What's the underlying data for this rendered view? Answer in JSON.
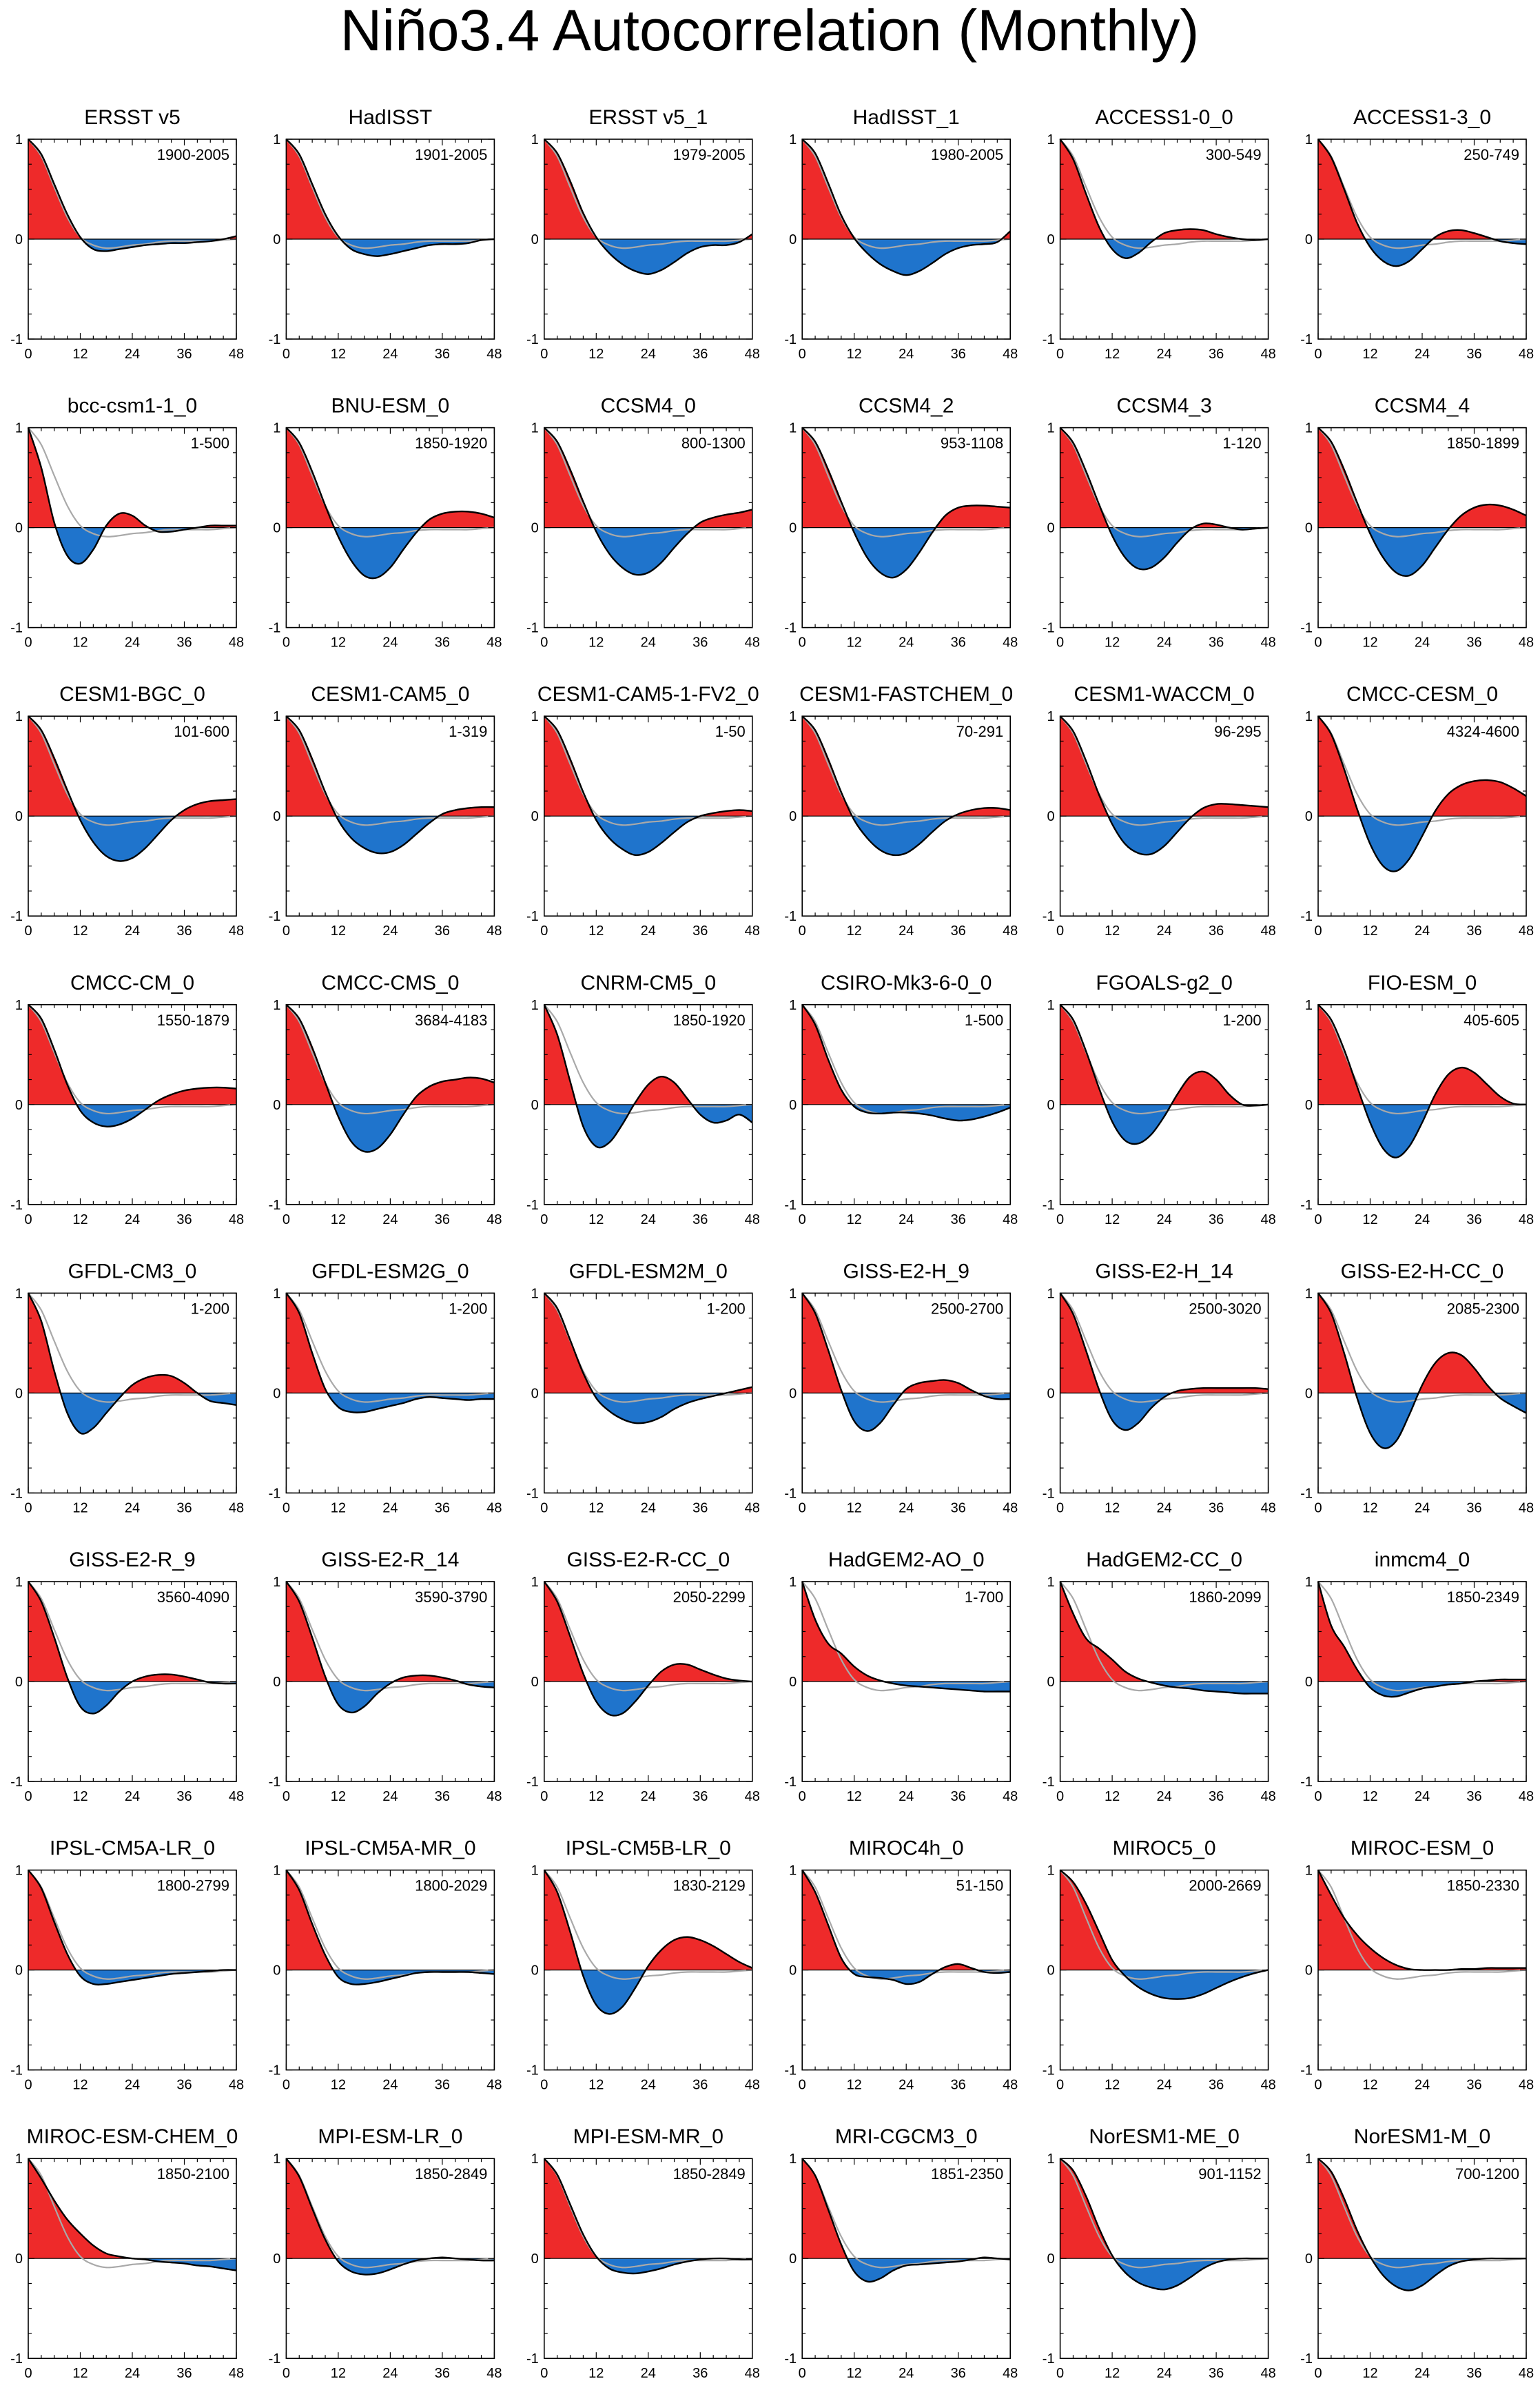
{
  "figure": {
    "title": "Niño3.4 Autocorrelation (Monthly)"
  },
  "colors": {
    "positive_fill": "#ee2a2a",
    "negative_fill": "#1f74cc",
    "model_line": "#000000",
    "obs_line": "#a9a9a9"
  },
  "chart_data": {
    "type": "area",
    "x_unit": "lag (months)",
    "xlim": [
      0,
      48
    ],
    "ylim": [
      -1,
      1
    ],
    "x_ticks": [
      0,
      12,
      24,
      36,
      48
    ],
    "y_ticks": [
      -1,
      0,
      1
    ],
    "x_tick_labels": [
      "0",
      "12",
      "24",
      "36",
      "48"
    ],
    "y_tick_labels": [
      "-1",
      "0",
      "1"
    ],
    "lag_months": [
      0,
      3,
      6,
      9,
      12,
      15,
      18,
      21,
      24,
      27,
      30,
      33,
      36,
      39,
      42,
      45,
      48
    ],
    "reference_series": [
      1.0,
      0.83,
      0.52,
      0.22,
      0.02,
      -0.06,
      -0.09,
      -0.08,
      -0.06,
      -0.05,
      -0.03,
      -0.02,
      -0.02,
      -0.02,
      -0.02,
      -0.01,
      0.0
    ],
    "panels": [
      {
        "name": "ERSST v5",
        "period": "1900-2005",
        "values": [
          1.0,
          0.85,
          0.55,
          0.25,
          0.02,
          -0.1,
          -0.12,
          -0.1,
          -0.08,
          -0.06,
          -0.05,
          -0.04,
          -0.04,
          -0.03,
          -0.02,
          0.0,
          0.03
        ]
      },
      {
        "name": "HadISST",
        "period": "1901-2005",
        "values": [
          1.0,
          0.85,
          0.55,
          0.25,
          0.03,
          -0.1,
          -0.15,
          -0.17,
          -0.15,
          -0.12,
          -0.09,
          -0.06,
          -0.05,
          -0.05,
          -0.04,
          -0.01,
          0.0
        ]
      },
      {
        "name": "ERSST v5_1",
        "period": "1979-2005",
        "values": [
          1.0,
          0.86,
          0.58,
          0.26,
          0.02,
          -0.14,
          -0.25,
          -0.32,
          -0.35,
          -0.31,
          -0.23,
          -0.14,
          -0.08,
          -0.06,
          -0.06,
          -0.03,
          0.05
        ]
      },
      {
        "name": "HadISST_1",
        "period": "1980-2005",
        "values": [
          1.0,
          0.86,
          0.56,
          0.24,
          0.01,
          -0.14,
          -0.25,
          -0.32,
          -0.36,
          -0.32,
          -0.24,
          -0.15,
          -0.09,
          -0.06,
          -0.05,
          -0.03,
          0.08
        ]
      },
      {
        "name": "ACCESS1-0_0",
        "period": "300-549",
        "values": [
          1.0,
          0.8,
          0.45,
          0.12,
          -0.1,
          -0.19,
          -0.14,
          -0.03,
          0.06,
          0.09,
          0.1,
          0.09,
          0.05,
          0.02,
          0.0,
          -0.01,
          0.0
        ]
      },
      {
        "name": "ACCESS1-3_0",
        "period": "250-749",
        "values": [
          1.0,
          0.82,
          0.5,
          0.16,
          -0.08,
          -0.22,
          -0.27,
          -0.22,
          -0.1,
          0.02,
          0.08,
          0.09,
          0.06,
          0.02,
          -0.02,
          -0.04,
          -0.05
        ]
      },
      {
        "name": "bcc-csm1-1_0",
        "period": "1-500",
        "values": [
          1.0,
          0.6,
          0.05,
          -0.28,
          -0.36,
          -0.22,
          0.02,
          0.14,
          0.12,
          0.02,
          -0.04,
          -0.04,
          -0.02,
          0.0,
          0.02,
          0.02,
          0.02
        ]
      },
      {
        "name": "BNU-ESM_0",
        "period": "1850-1920",
        "values": [
          1.0,
          0.85,
          0.56,
          0.22,
          -0.09,
          -0.33,
          -0.48,
          -0.5,
          -0.4,
          -0.22,
          -0.05,
          0.08,
          0.14,
          0.16,
          0.16,
          0.14,
          0.1
        ]
      },
      {
        "name": "CCSM4_0",
        "period": "800-1300",
        "values": [
          1.0,
          0.86,
          0.58,
          0.26,
          -0.04,
          -0.26,
          -0.4,
          -0.47,
          -0.45,
          -0.35,
          -0.2,
          -0.06,
          0.05,
          0.1,
          0.13,
          0.15,
          0.18
        ]
      },
      {
        "name": "CCSM4_2",
        "period": "953-1108",
        "values": [
          1.0,
          0.86,
          0.58,
          0.26,
          -0.05,
          -0.3,
          -0.45,
          -0.5,
          -0.42,
          -0.25,
          -0.05,
          0.12,
          0.2,
          0.22,
          0.22,
          0.21,
          0.2
        ]
      },
      {
        "name": "CCSM4_3",
        "period": "1-120",
        "values": [
          1.0,
          0.85,
          0.56,
          0.23,
          -0.08,
          -0.3,
          -0.41,
          -0.4,
          -0.3,
          -0.15,
          -0.02,
          0.04,
          0.03,
          0.0,
          -0.02,
          -0.01,
          0.0
        ]
      },
      {
        "name": "CCSM4_4",
        "period": "1850-1899",
        "values": [
          1.0,
          0.86,
          0.58,
          0.25,
          -0.06,
          -0.3,
          -0.45,
          -0.48,
          -0.38,
          -0.2,
          -0.02,
          0.12,
          0.2,
          0.23,
          0.22,
          0.18,
          0.12
        ]
      },
      {
        "name": "CESM1-BGC_0",
        "period": "101-600",
        "values": [
          1.0,
          0.86,
          0.58,
          0.26,
          -0.04,
          -0.26,
          -0.4,
          -0.45,
          -0.42,
          -0.32,
          -0.18,
          -0.04,
          0.06,
          0.12,
          0.15,
          0.16,
          0.17
        ]
      },
      {
        "name": "CESM1-CAM5_0",
        "period": "1-319",
        "values": [
          1.0,
          0.86,
          0.57,
          0.24,
          -0.04,
          -0.22,
          -0.32,
          -0.37,
          -0.36,
          -0.29,
          -0.18,
          -0.07,
          0.02,
          0.06,
          0.08,
          0.09,
          0.09
        ]
      },
      {
        "name": "CESM1-CAM5-1-FV2_0",
        "period": "1-50",
        "values": [
          1.0,
          0.86,
          0.57,
          0.24,
          -0.04,
          -0.22,
          -0.33,
          -0.39,
          -0.36,
          -0.27,
          -0.16,
          -0.06,
          0.0,
          0.03,
          0.05,
          0.06,
          0.05
        ]
      },
      {
        "name": "CESM1-FASTCHEM_0",
        "period": "70-291",
        "values": [
          1.0,
          0.86,
          0.57,
          0.24,
          -0.04,
          -0.22,
          -0.34,
          -0.39,
          -0.37,
          -0.28,
          -0.16,
          -0.05,
          0.02,
          0.06,
          0.08,
          0.08,
          0.06
        ]
      },
      {
        "name": "CESM1-WACCM_0",
        "period": "96-295",
        "values": [
          1.0,
          0.85,
          0.55,
          0.21,
          -0.08,
          -0.28,
          -0.37,
          -0.38,
          -0.3,
          -0.16,
          -0.02,
          0.08,
          0.12,
          0.12,
          0.11,
          0.1,
          0.09
        ]
      },
      {
        "name": "CMCC-CESM_0",
        "period": "4324-4600",
        "values": [
          1.0,
          0.82,
          0.47,
          0.07,
          -0.28,
          -0.5,
          -0.55,
          -0.43,
          -0.2,
          0.05,
          0.22,
          0.31,
          0.35,
          0.36,
          0.34,
          0.28,
          0.2
        ]
      },
      {
        "name": "CMCC-CM_0",
        "period": "1550-1879",
        "values": [
          1.0,
          0.86,
          0.55,
          0.2,
          -0.06,
          -0.18,
          -0.22,
          -0.2,
          -0.14,
          -0.05,
          0.04,
          0.1,
          0.14,
          0.16,
          0.17,
          0.17,
          0.16
        ]
      },
      {
        "name": "CMCC-CMS_0",
        "period": "3684-4183",
        "values": [
          1.0,
          0.86,
          0.57,
          0.22,
          -0.12,
          -0.37,
          -0.47,
          -0.44,
          -0.3,
          -0.1,
          0.08,
          0.18,
          0.23,
          0.25,
          0.27,
          0.26,
          0.22
        ]
      },
      {
        "name": "CNRM-CM5_0",
        "period": "1850-1920",
        "values": [
          1.0,
          0.7,
          0.23,
          -0.22,
          -0.42,
          -0.38,
          -0.2,
          0.02,
          0.2,
          0.28,
          0.22,
          0.06,
          -0.1,
          -0.18,
          -0.16,
          -0.1,
          -0.18
        ]
      },
      {
        "name": "CSIRO-Mk3-6-0_0",
        "period": "1-500",
        "values": [
          1.0,
          0.8,
          0.45,
          0.15,
          -0.02,
          -0.08,
          -0.09,
          -0.08,
          -0.08,
          -0.09,
          -0.11,
          -0.14,
          -0.16,
          -0.15,
          -0.12,
          -0.08,
          -0.03
        ]
      },
      {
        "name": "FGOALS-g2_0",
        "period": "1-200",
        "values": [
          1.0,
          0.85,
          0.53,
          0.16,
          -0.17,
          -0.36,
          -0.39,
          -0.3,
          -0.12,
          0.1,
          0.28,
          0.33,
          0.25,
          0.1,
          0.0,
          -0.01,
          0.0
        ]
      },
      {
        "name": "FIO-ESM_0",
        "period": "405-605",
        "values": [
          1.0,
          0.85,
          0.55,
          0.18,
          -0.18,
          -0.44,
          -0.53,
          -0.42,
          -0.18,
          0.1,
          0.3,
          0.37,
          0.32,
          0.2,
          0.08,
          0.01,
          0.0
        ]
      },
      {
        "name": "GFDL-CM3_0",
        "period": "1-200",
        "values": [
          1.0,
          0.72,
          0.22,
          -0.2,
          -0.4,
          -0.35,
          -0.2,
          -0.05,
          0.08,
          0.15,
          0.18,
          0.17,
          0.1,
          0.0,
          -0.08,
          -0.1,
          -0.12
        ]
      },
      {
        "name": "GFDL-ESM2G_0",
        "period": "1-200",
        "values": [
          1.0,
          0.8,
          0.4,
          0.04,
          -0.14,
          -0.19,
          -0.19,
          -0.16,
          -0.13,
          -0.1,
          -0.06,
          -0.04,
          -0.05,
          -0.06,
          -0.07,
          -0.06,
          -0.06
        ]
      },
      {
        "name": "GFDL-ESM2M_0",
        "period": "1-200",
        "values": [
          1.0,
          0.85,
          0.53,
          0.2,
          -0.05,
          -0.18,
          -0.26,
          -0.3,
          -0.29,
          -0.24,
          -0.16,
          -0.1,
          -0.06,
          -0.03,
          0.0,
          0.03,
          0.06
        ]
      },
      {
        "name": "GISS-E2-H_9",
        "period": "2500-2700",
        "values": [
          1.0,
          0.8,
          0.43,
          0.03,
          -0.28,
          -0.38,
          -0.3,
          -0.12,
          0.04,
          0.1,
          0.12,
          0.13,
          0.1,
          0.03,
          -0.03,
          -0.06,
          -0.06
        ]
      },
      {
        "name": "GISS-E2-H_14",
        "period": "2500-3020",
        "values": [
          1.0,
          0.79,
          0.42,
          0.03,
          -0.27,
          -0.37,
          -0.3,
          -0.15,
          -0.04,
          0.02,
          0.04,
          0.05,
          0.05,
          0.05,
          0.05,
          0.05,
          0.04
        ]
      },
      {
        "name": "GISS-E2-H-CC_0",
        "period": "2085-2300",
        "values": [
          1.0,
          0.8,
          0.4,
          -0.05,
          -0.4,
          -0.55,
          -0.48,
          -0.22,
          0.08,
          0.3,
          0.4,
          0.38,
          0.25,
          0.08,
          -0.05,
          -0.13,
          -0.2
        ]
      },
      {
        "name": "GISS-E2-R_9",
        "period": "3560-4090",
        "values": [
          1.0,
          0.8,
          0.44,
          0.04,
          -0.25,
          -0.32,
          -0.24,
          -0.1,
          0.0,
          0.05,
          0.07,
          0.07,
          0.05,
          0.02,
          -0.01,
          -0.02,
          -0.02
        ]
      },
      {
        "name": "GISS-E2-R_14",
        "period": "3590-3790",
        "values": [
          1.0,
          0.8,
          0.44,
          0.05,
          -0.23,
          -0.31,
          -0.25,
          -0.12,
          -0.02,
          0.04,
          0.06,
          0.06,
          0.04,
          0.01,
          -0.03,
          -0.05,
          -0.06
        ]
      },
      {
        "name": "GISS-E2-R-CC_0",
        "period": "2050-2299",
        "values": [
          1.0,
          0.8,
          0.45,
          0.08,
          -0.2,
          -0.33,
          -0.32,
          -0.2,
          -0.04,
          0.1,
          0.17,
          0.17,
          0.12,
          0.07,
          0.03,
          0.01,
          0.0
        ]
      },
      {
        "name": "HadGEM2-AO_0",
        "period": "1-700",
        "values": [
          1.0,
          0.62,
          0.38,
          0.28,
          0.15,
          0.06,
          0.01,
          -0.02,
          -0.04,
          -0.05,
          -0.06,
          -0.07,
          -0.08,
          -0.09,
          -0.1,
          -0.1,
          -0.1
        ]
      },
      {
        "name": "HadGEM2-CC_0",
        "period": "1860-2099",
        "values": [
          1.0,
          0.68,
          0.43,
          0.33,
          0.22,
          0.1,
          0.03,
          -0.01,
          -0.04,
          -0.06,
          -0.07,
          -0.09,
          -0.1,
          -0.11,
          -0.12,
          -0.12,
          -0.12
        ]
      },
      {
        "name": "inmcm4_0",
        "period": "1850-2349",
        "values": [
          1.0,
          0.56,
          0.35,
          0.12,
          -0.06,
          -0.14,
          -0.15,
          -0.11,
          -0.07,
          -0.05,
          -0.03,
          -0.02,
          0.0,
          0.01,
          0.02,
          0.02,
          0.02
        ]
      },
      {
        "name": "IPSL-CM5A-LR_0",
        "period": "1800-2799",
        "values": [
          1.0,
          0.82,
          0.48,
          0.16,
          -0.06,
          -0.14,
          -0.14,
          -0.12,
          -0.1,
          -0.08,
          -0.06,
          -0.04,
          -0.03,
          -0.02,
          -0.01,
          0.0,
          0.0
        ]
      },
      {
        "name": "IPSL-CM5A-MR_0",
        "period": "1800-2029",
        "values": [
          1.0,
          0.8,
          0.46,
          0.15,
          -0.07,
          -0.14,
          -0.14,
          -0.12,
          -0.09,
          -0.06,
          -0.03,
          -0.02,
          -0.02,
          -0.02,
          -0.02,
          -0.03,
          -0.04
        ]
      },
      {
        "name": "IPSL-CM5B-LR_0",
        "period": "1830-2129",
        "values": [
          1.0,
          0.78,
          0.38,
          -0.06,
          -0.35,
          -0.44,
          -0.37,
          -0.18,
          0.04,
          0.2,
          0.3,
          0.33,
          0.3,
          0.24,
          0.16,
          0.08,
          0.02
        ]
      },
      {
        "name": "MIROC4h_0",
        "period": "51-150",
        "values": [
          1.0,
          0.78,
          0.45,
          0.12,
          -0.04,
          -0.07,
          -0.08,
          -0.1,
          -0.14,
          -0.12,
          -0.04,
          0.03,
          0.06,
          0.02,
          -0.02,
          -0.03,
          -0.02
        ]
      },
      {
        "name": "MIROC5_0",
        "period": "2000-2669",
        "values": [
          1.0,
          0.88,
          0.66,
          0.38,
          0.1,
          -0.06,
          -0.17,
          -0.24,
          -0.28,
          -0.29,
          -0.28,
          -0.24,
          -0.18,
          -0.12,
          -0.07,
          -0.03,
          0.0
        ]
      },
      {
        "name": "MIROC-ESM_0",
        "period": "1850-2330",
        "values": [
          1.0,
          0.75,
          0.52,
          0.35,
          0.22,
          0.12,
          0.05,
          0.01,
          0.0,
          0.0,
          0.0,
          0.01,
          0.01,
          0.02,
          0.02,
          0.02,
          0.02
        ]
      },
      {
        "name": "MIROC-ESM-CHEM_0",
        "period": "1850-2100",
        "values": [
          1.0,
          0.8,
          0.58,
          0.39,
          0.25,
          0.13,
          0.05,
          0.02,
          0.0,
          -0.01,
          -0.03,
          -0.04,
          -0.05,
          -0.07,
          -0.08,
          -0.1,
          -0.12
        ]
      },
      {
        "name": "MPI-ESM-LR_0",
        "period": "1850-2849",
        "values": [
          1.0,
          0.82,
          0.5,
          0.19,
          -0.03,
          -0.13,
          -0.16,
          -0.15,
          -0.11,
          -0.06,
          -0.02,
          0.0,
          0.01,
          0.0,
          -0.01,
          -0.02,
          -0.02
        ]
      },
      {
        "name": "MPI-ESM-MR_0",
        "period": "1850-2849",
        "values": [
          1.0,
          0.84,
          0.54,
          0.24,
          0.02,
          -0.1,
          -0.14,
          -0.15,
          -0.13,
          -0.1,
          -0.06,
          -0.03,
          -0.01,
          0.0,
          0.0,
          -0.01,
          -0.01
        ]
      },
      {
        "name": "MRI-CGCM3_0",
        "period": "1851-2350",
        "values": [
          1.0,
          0.83,
          0.49,
          0.14,
          -0.13,
          -0.23,
          -0.2,
          -0.12,
          -0.07,
          -0.06,
          -0.05,
          -0.04,
          -0.03,
          -0.01,
          0.01,
          0.0,
          -0.01
        ]
      },
      {
        "name": "NorESM1-ME_0",
        "period": "901-1152",
        "values": [
          1.0,
          0.88,
          0.62,
          0.3,
          0.03,
          -0.14,
          -0.24,
          -0.29,
          -0.31,
          -0.27,
          -0.19,
          -0.1,
          -0.04,
          -0.01,
          0.0,
          0.0,
          0.0
        ]
      },
      {
        "name": "NorESM1-M_0",
        "period": "700-1200",
        "values": [
          1.0,
          0.87,
          0.6,
          0.28,
          0.02,
          -0.17,
          -0.28,
          -0.32,
          -0.27,
          -0.17,
          -0.08,
          -0.03,
          -0.01,
          0.0,
          0.0,
          0.0,
          0.0
        ]
      }
    ]
  }
}
